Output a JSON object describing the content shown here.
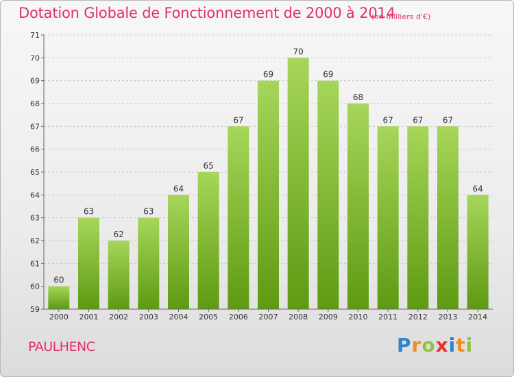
{
  "title": "Dotation Globale de Fonctionnement de 2000 à 2014",
  "unit_label": "(en milliers d'€)",
  "commune": "PAULHENC",
  "logo": {
    "letters": [
      "P",
      "r",
      "o",
      "x",
      "i",
      "t",
      "i"
    ],
    "colors": [
      "#2e86c9",
      "#f28c1e",
      "#8cc63f",
      "#e8312f",
      "#2e86c9",
      "#f28c1e",
      "#8cc63f"
    ]
  },
  "colors": {
    "title": "#e0306a",
    "bar_top": "#a6d65a",
    "bar_bottom": "#5e9a12",
    "grid": "#c8c8c8"
  },
  "chart_data": {
    "type": "bar",
    "title": "Dotation Globale de Fonctionnement de 2000 à 2014",
    "xlabel": "",
    "ylabel": "",
    "categories": [
      "2000",
      "2001",
      "2002",
      "2003",
      "2004",
      "2005",
      "2006",
      "2007",
      "2008",
      "2009",
      "2010",
      "2011",
      "2012",
      "2013",
      "2014"
    ],
    "values": [
      60,
      63,
      62,
      63,
      64,
      65,
      67,
      69,
      70,
      69,
      68,
      67,
      67,
      67,
      64
    ],
    "ylim": [
      59,
      71
    ],
    "yticks": [
      59,
      60,
      61,
      62,
      63,
      64,
      65,
      66,
      67,
      68,
      69,
      70,
      71
    ],
    "grid": "horizontal dashed",
    "legend": "none"
  }
}
